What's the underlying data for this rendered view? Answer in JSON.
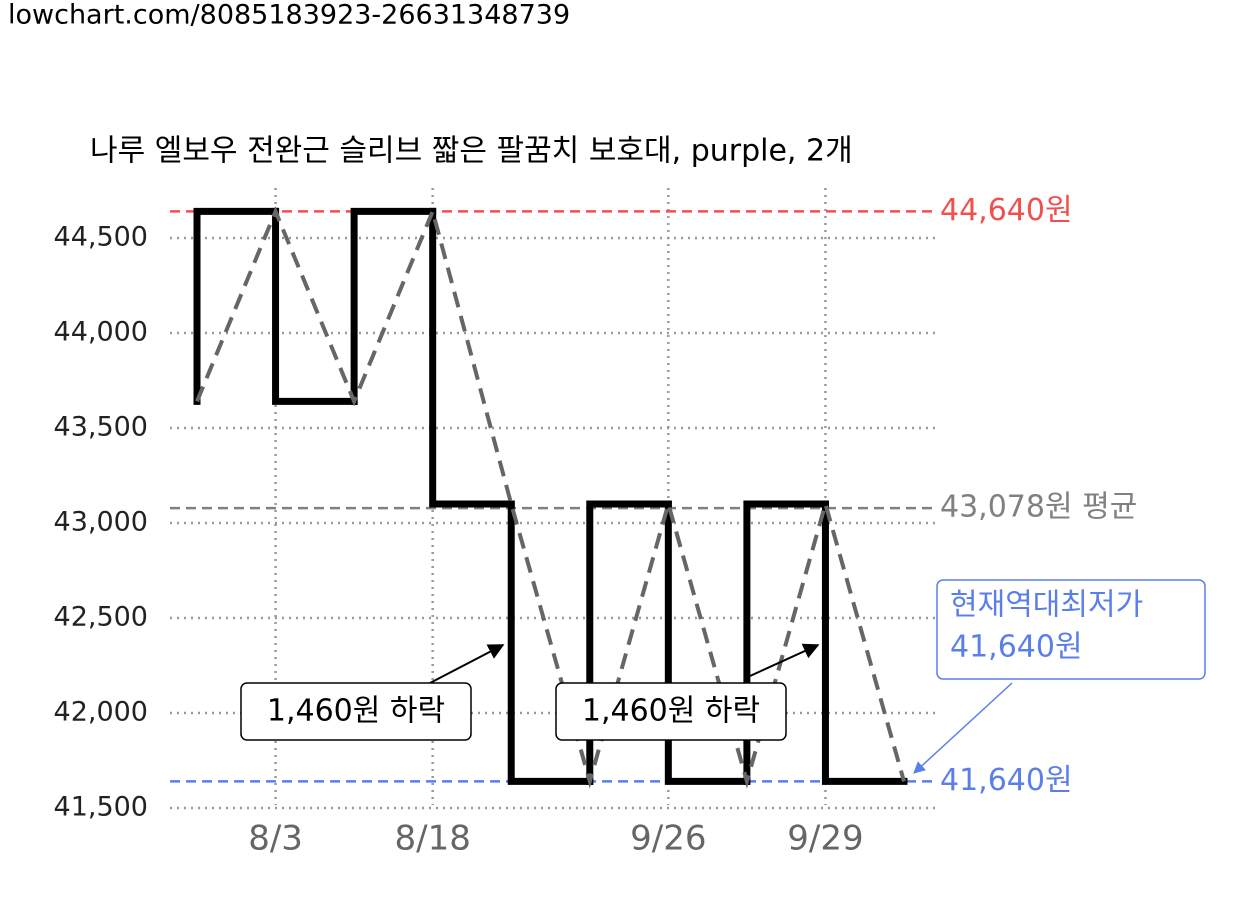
{
  "url": "lowchart.com/8085183923-26631348739",
  "chart_data": {
    "type": "step-price",
    "title": "나루 엘보우 전완근 슬리브 짧은 팔꿈치 보호대, purple, 2개",
    "categories": [
      null,
      "8/3",
      null,
      "8/18",
      null,
      null,
      "9/26",
      null,
      "9/29",
      null
    ],
    "values": [
      43640,
      44640,
      43640,
      44640,
      43100,
      41640,
      43100,
      41640,
      43100,
      41640
    ],
    "step_color": "#000000",
    "line_color": "#666666",
    "ylim": [
      41500,
      44750
    ],
    "yticks": [
      {
        "value": 41500,
        "label": "41,500"
      },
      {
        "value": 42000,
        "label": "42,000"
      },
      {
        "value": 42500,
        "label": "42,500"
      },
      {
        "value": 43000,
        "label": "43,000"
      },
      {
        "value": 43500,
        "label": "43,500"
      },
      {
        "value": 44000,
        "label": "44,000"
      },
      {
        "value": 44500,
        "label": "44,500"
      }
    ],
    "grid": true,
    "max": {
      "value": 44640,
      "label": "44,640원",
      "color": "#f05050"
    },
    "average": {
      "value": 43078,
      "label": "43,078원 평균",
      "color": "#808080"
    },
    "min": {
      "value": 41640,
      "label": "41,640원",
      "color": "#5b7fe8"
    },
    "annotations": [
      "1,460원 하락",
      "1,460원 하락"
    ],
    "callout": [
      "현재역대최저가",
      "41,640원"
    ]
  }
}
